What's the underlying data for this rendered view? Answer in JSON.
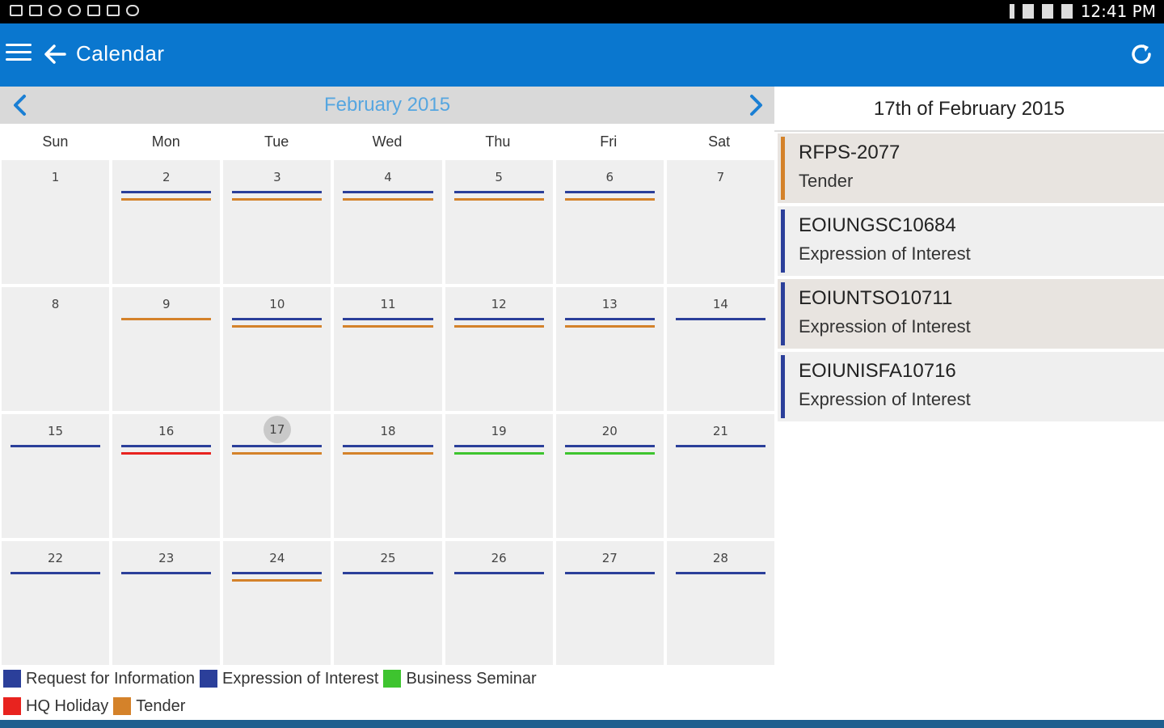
{
  "status_bar": {
    "time": "12:41 PM"
  },
  "app_bar": {
    "title": "Calendar",
    "accent": "#0a77cf"
  },
  "calendar": {
    "month_title": "February 2015",
    "weekdays": [
      "Sun",
      "Mon",
      "Tue",
      "Wed",
      "Thu",
      "Fri",
      "Sat"
    ],
    "selected_day": "17",
    "colors": {
      "rfi": "#2b3f9a",
      "eoi": "#2b3f9a",
      "seminar": "#3ec42f",
      "holiday": "#e8231f",
      "tender": "#d4822a"
    },
    "days": [
      {
        "label": "1",
        "events": []
      },
      {
        "label": "2",
        "events": [
          "eoi",
          "tender"
        ]
      },
      {
        "label": "3",
        "events": [
          "eoi",
          "tender"
        ]
      },
      {
        "label": "4",
        "events": [
          "eoi",
          "tender"
        ]
      },
      {
        "label": "5",
        "events": [
          "eoi",
          "tender"
        ]
      },
      {
        "label": "6",
        "events": [
          "eoi",
          "tender"
        ]
      },
      {
        "label": "7",
        "events": []
      },
      {
        "label": "8",
        "events": []
      },
      {
        "label": "9",
        "events": [
          "tender"
        ]
      },
      {
        "label": "10",
        "events": [
          "eoi",
          "tender"
        ]
      },
      {
        "label": "11",
        "events": [
          "eoi",
          "tender"
        ]
      },
      {
        "label": "12",
        "events": [
          "eoi",
          "tender"
        ]
      },
      {
        "label": "13",
        "events": [
          "eoi",
          "tender"
        ]
      },
      {
        "label": "14",
        "events": [
          "eoi"
        ]
      },
      {
        "label": "15",
        "events": [
          "eoi"
        ]
      },
      {
        "label": "16",
        "events": [
          "eoi",
          "holiday"
        ]
      },
      {
        "label": "17",
        "events": [
          "eoi",
          "tender"
        ]
      },
      {
        "label": "18",
        "events": [
          "eoi",
          "tender"
        ]
      },
      {
        "label": "19",
        "events": [
          "eoi",
          "seminar"
        ]
      },
      {
        "label": "20",
        "events": [
          "eoi",
          "seminar"
        ]
      },
      {
        "label": "21",
        "events": [
          "eoi"
        ]
      },
      {
        "label": "22",
        "events": [
          "eoi"
        ]
      },
      {
        "label": "23",
        "events": [
          "eoi"
        ]
      },
      {
        "label": "24",
        "events": [
          "eoi",
          "tender"
        ]
      },
      {
        "label": "25",
        "events": [
          "eoi"
        ]
      },
      {
        "label": "26",
        "events": [
          "eoi"
        ]
      },
      {
        "label": "27",
        "events": [
          "eoi"
        ]
      },
      {
        "label": "28",
        "events": [
          "eoi"
        ]
      }
    ]
  },
  "legend": {
    "row1": [
      {
        "label": "Request for Information",
        "color": "#2b3f9a"
      },
      {
        "label": "Expression of Interest",
        "color": "#2b3f9a"
      },
      {
        "label": "Business Seminar",
        "color": "#3ec42f"
      }
    ],
    "row2": [
      {
        "label": "HQ Holiday",
        "color": "#e8231f"
      },
      {
        "label": "Tender",
        "color": "#d4822a"
      }
    ]
  },
  "side_panel": {
    "title": "17th of February 2015",
    "events": [
      {
        "code": "RFPS-2077",
        "type": "Tender",
        "color": "#d4822a",
        "highlight": true
      },
      {
        "code": "EOIUNGSC10684",
        "type": "Expression of Interest",
        "color": "#2b3f9a",
        "highlight": false
      },
      {
        "code": "EOIUNTSO10711",
        "type": "Expression of Interest",
        "color": "#2b3f9a",
        "highlight": true
      },
      {
        "code": "EOIUNISFA10716",
        "type": "Expression of Interest",
        "color": "#2b3f9a",
        "highlight": false
      }
    ]
  }
}
